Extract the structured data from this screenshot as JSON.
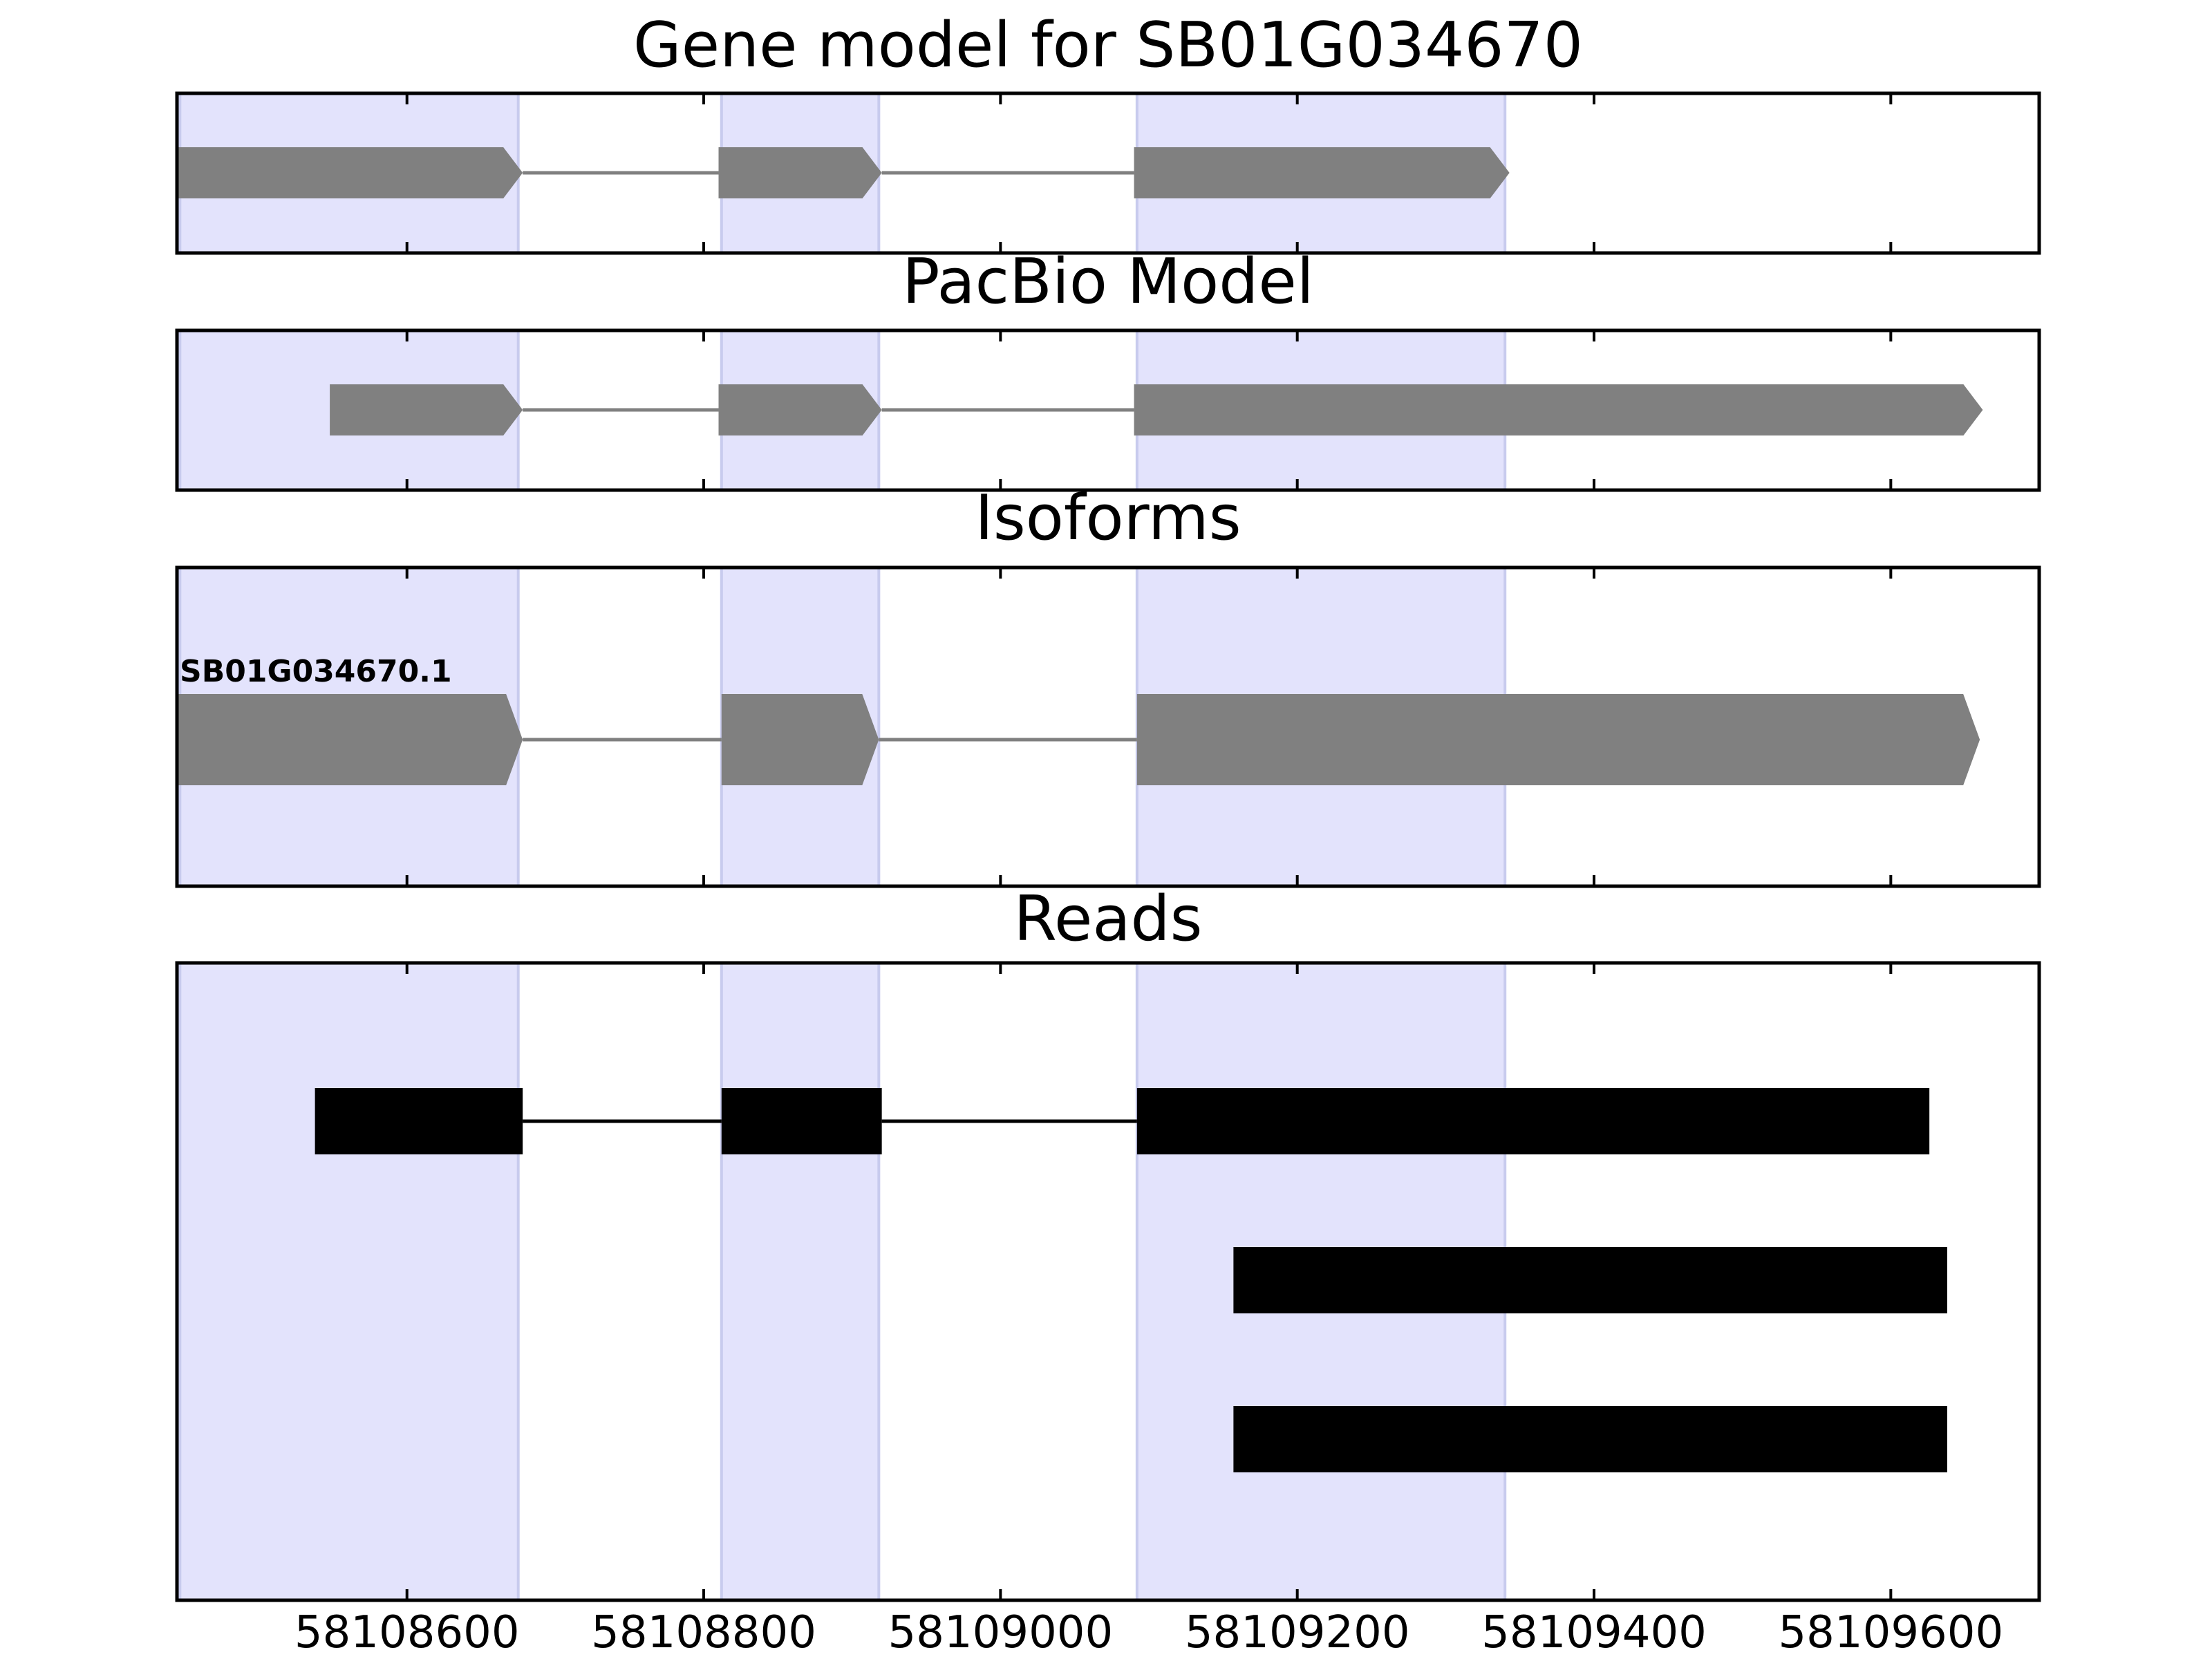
{
  "chart_data": {
    "type": "gene-track",
    "x_axis": {
      "ticks": [
        58108600,
        58108800,
        58109000,
        58109200,
        58109400,
        58109600
      ],
      "tick_labels": [
        "58108600",
        "58108800",
        "58109000",
        "58109200",
        "58109400",
        "58109600"
      ],
      "xlim": [
        58108445,
        58109700
      ]
    },
    "highlight_regions": [
      [
        58108447,
        58108675
      ],
      [
        58108812,
        58108918
      ],
      [
        58109092,
        58109340
      ]
    ],
    "panels": [
      {
        "title": "Gene model for SB01G034670",
        "kind": "arrow-blocks",
        "color": "#808080",
        "rows": [
          {
            "label": "",
            "exons": [
              [
                58108445,
                58108678
              ],
              [
                58108810,
                58108920
              ],
              [
                58109090,
                58109343
              ]
            ]
          }
        ]
      },
      {
        "title": "PacBio Model",
        "kind": "arrow-blocks",
        "color": "#808080",
        "rows": [
          {
            "label": "",
            "exons": [
              [
                58108548,
                58108678
              ],
              [
                58108810,
                58108920
              ],
              [
                58109090,
                58109662
              ]
            ]
          }
        ]
      },
      {
        "title": "Isoforms",
        "kind": "arrow-blocks",
        "color": "#808080",
        "rows": [
          {
            "label": "SB01G034670.1",
            "exons": [
              [
                58108445,
                58108678
              ],
              [
                58108812,
                58108918
              ],
              [
                58109092,
                58109660
              ]
            ]
          }
        ]
      },
      {
        "title": "Reads",
        "kind": "bars",
        "color": "#000000",
        "rows": [
          {
            "label": "",
            "exons": [
              [
                58108538,
                58108678
              ],
              [
                58108812,
                58108920
              ],
              [
                58109092,
                58109626
              ]
            ]
          },
          {
            "label": "",
            "exons": [
              [
                58109157,
                58109638
              ]
            ]
          },
          {
            "label": "",
            "exons": [
              [
                58109157,
                58109638
              ]
            ]
          }
        ]
      }
    ],
    "colors": {
      "highlight_fill": "#e3e3fc",
      "highlight_edge": "#c8cbee",
      "intron_gray": "#808080",
      "frame": "#000000"
    }
  }
}
